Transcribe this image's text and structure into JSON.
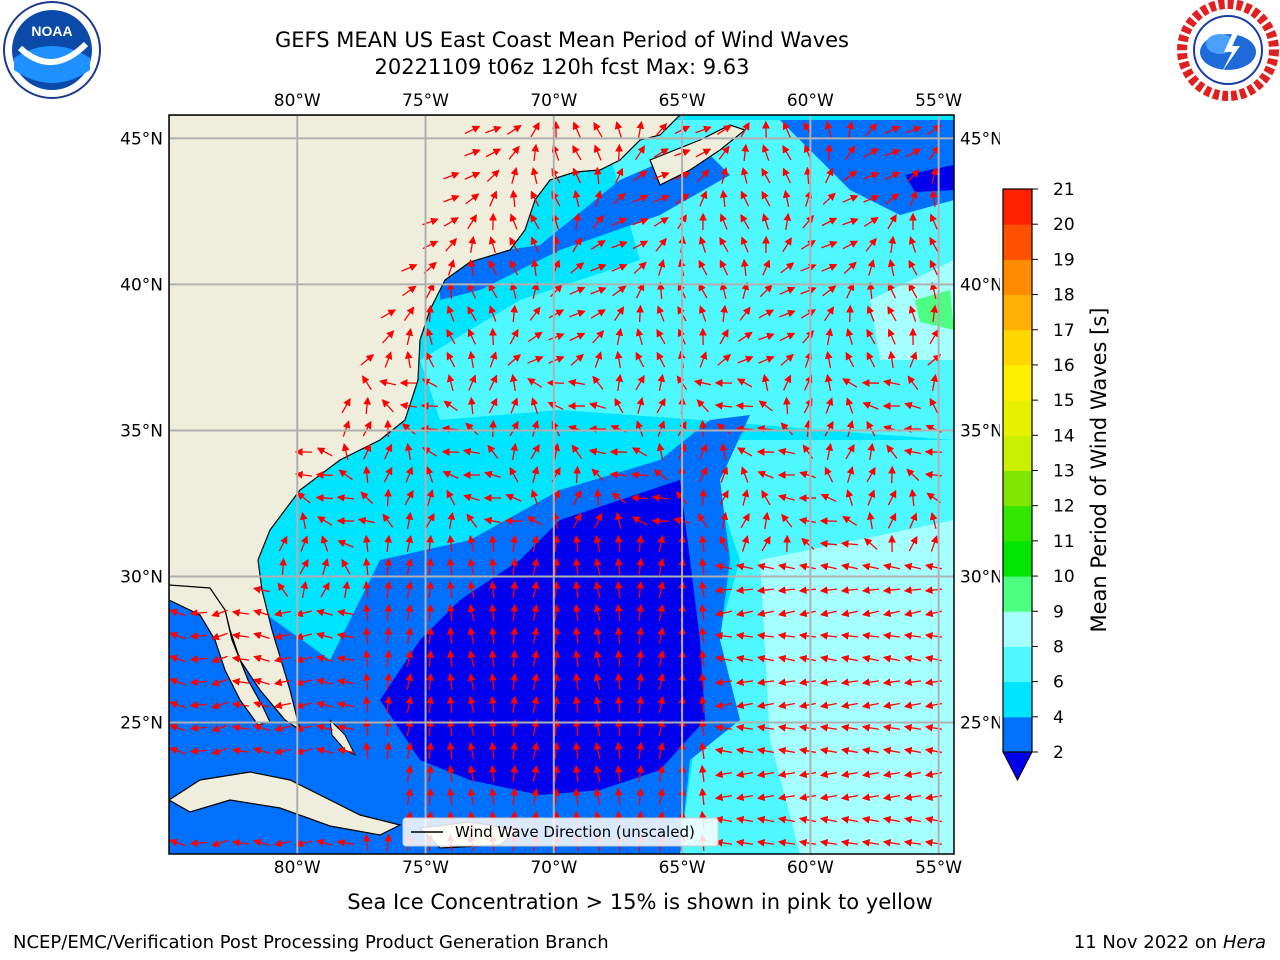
{
  "title": {
    "line1": "GEFS MEAN US East Coast Mean Period of Wind Waves",
    "line2": "20221109 t06z 120h fcst   Max: 9.63"
  },
  "logos": {
    "noaa": {
      "icon": "noaa-logo",
      "text": "NOAA"
    },
    "nws": {
      "icon": "national-weather-service-logo"
    }
  },
  "map": {
    "lon_labels": [
      "80°W",
      "75°W",
      "70°W",
      "65°W",
      "60°W",
      "55°W"
    ],
    "lat_labels": [
      "45°N",
      "40°N",
      "35°N",
      "30°N",
      "25°N"
    ],
    "lon_range": [
      -85,
      -54.4
    ],
    "lat_range": [
      20.5,
      45.8
    ],
    "legend_label": "Wind Wave Direction (unscaled)",
    "arrow_color": "#ff0000",
    "land_color": "#efeedc",
    "grid": true
  },
  "colorbar": {
    "label": "Mean Period of Wind Waves [s]",
    "tick_labels": [
      "2",
      "4",
      "6",
      "8",
      "9",
      "10",
      "11",
      "12",
      "13",
      "14",
      "15",
      "16",
      "17",
      "18",
      "19",
      "20",
      "21"
    ],
    "colors": [
      "#0070ff",
      "#00e5ff",
      "#4ff7ff",
      "#a6ffff",
      "#4dff80",
      "#00e600",
      "#33e600",
      "#80e600",
      "#c8f000",
      "#e6f000",
      "#fff000",
      "#ffd700",
      "#ffb000",
      "#ff8c00",
      "#ff5000",
      "#ff2000"
    ],
    "under_color": "#0000ee"
  },
  "footer": {
    "note": "Sea Ice Concentration > 15% is shown in pink to yellow",
    "credit_left": "NCEP/EMC/Verification Post Processing Product Generation Branch",
    "date": "11 Nov 2022 on",
    "machine": "Hera"
  }
}
